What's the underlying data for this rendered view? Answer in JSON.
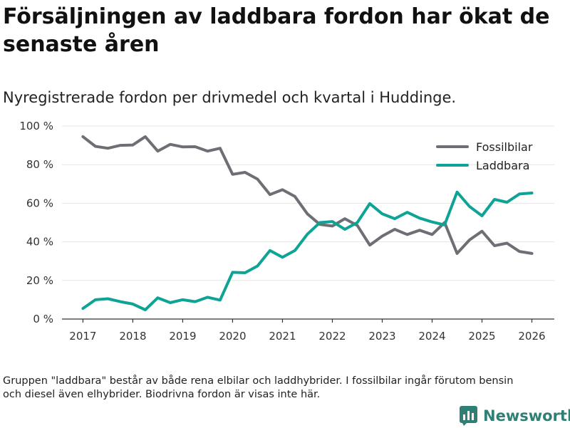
{
  "header": {
    "title": "Försäljningen av laddbara fordon har ökat de senaste åren",
    "subtitle": "Nyregistrerade fordon per drivmedel och kvartal i Huddinge."
  },
  "colors": {
    "fossil": "#6e6e75",
    "laddbara": "#0fa396",
    "brand": "#2f7f74",
    "grid": "#e4e4e4"
  },
  "chart_data": {
    "type": "line",
    "title": "Försäljningen av laddbara fordon har ökat de senaste åren",
    "subtitle": "Nyregistrerade fordon per drivmedel och kvartal i Huddinge.",
    "xlabel": "",
    "ylabel": "",
    "xlim": [
      2016.58,
      2026.45
    ],
    "ylim": [
      0,
      100
    ],
    "x_ticks": [
      2017,
      2018,
      2019,
      2020,
      2021,
      2022,
      2023,
      2024,
      2025,
      2026
    ],
    "y_ticks": [
      0,
      20,
      40,
      60,
      80,
      100
    ],
    "y_tick_labels": [
      "0 %",
      "20 %",
      "40 %",
      "60 %",
      "80 %",
      "100 %"
    ],
    "grid": true,
    "legend_position": "top-right",
    "x": [
      2017.0,
      2017.25,
      2017.5,
      2017.75,
      2018.0,
      2018.25,
      2018.5,
      2018.75,
      2019.0,
      2019.25,
      2019.5,
      2019.75,
      2020.0,
      2020.25,
      2020.5,
      2020.75,
      2021.0,
      2021.25,
      2021.5,
      2021.75,
      2022.0,
      2022.25,
      2022.5,
      2022.75,
      2023.0,
      2023.25,
      2023.5,
      2023.75,
      2024.0,
      2024.25,
      2024.5,
      2024.75,
      2025.0,
      2025.25,
      2025.5,
      2025.75,
      2026.0
    ],
    "series": [
      {
        "name": "Fossilbilar",
        "color": "#6e6e75",
        "values": [
          94.5,
          89.5,
          88.5,
          90.0,
          90.2,
          94.5,
          87.0,
          90.5,
          89.2,
          89.3,
          87.0,
          88.5,
          75.0,
          76.0,
          72.5,
          64.5,
          67.0,
          63.5,
          54.5,
          49.0,
          48.2,
          52.0,
          48.5,
          38.3,
          43.0,
          46.5,
          43.8,
          46.0,
          43.8,
          50.0,
          34.0,
          41.0,
          45.5,
          38.0,
          39.3,
          35.0,
          34.0
        ]
      },
      {
        "name": "Laddbara",
        "color": "#0fa396",
        "values": [
          5.5,
          10.0,
          10.5,
          9.0,
          7.8,
          4.8,
          11.0,
          8.5,
          10.0,
          9.0,
          11.3,
          9.8,
          24.2,
          24.0,
          27.5,
          35.5,
          32.0,
          35.5,
          44.0,
          50.0,
          50.5,
          46.5,
          50.0,
          59.8,
          54.5,
          52.0,
          55.3,
          52.3,
          50.3,
          48.8,
          65.8,
          58.3,
          53.5,
          62.0,
          60.5,
          64.8,
          65.3
        ]
      }
    ]
  },
  "footnote": {
    "line1": "Gruppen \"laddbara\" består av både rena elbilar och laddhybrider. I fossilbilar ingår förutom bensin",
    "line2": "och diesel även elhybrider. Biodrivna fordon är visas inte här."
  },
  "brand": {
    "name": "Newsworthy",
    "icon": "bar-chart-icon"
  }
}
